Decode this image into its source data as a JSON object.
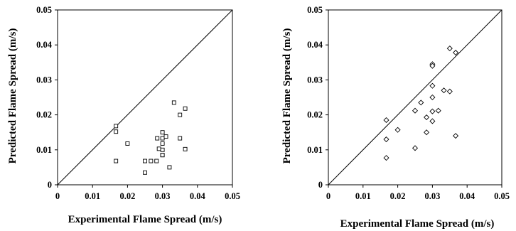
{
  "chart_data": [
    {
      "type": "scatter",
      "title": "",
      "xlabel": "Experimental Flame Spread (m/s)",
      "ylabel": "Predicted Flame Spread (m/s)",
      "xlim": [
        0,
        0.05
      ],
      "ylim": [
        0,
        0.05
      ],
      "xticks": [
        "0",
        "0.01",
        "0.02",
        "0.03",
        "0.04",
        "0.05"
      ],
      "yticks": [
        "0",
        "0.01",
        "0.02",
        "0.03",
        "0.04",
        "0.05"
      ],
      "marker": "square",
      "reference_line": "y = x",
      "grid": false,
      "series": [
        {
          "points": [
            [
              0.0167,
              0.0168
            ],
            [
              0.0167,
              0.0152
            ],
            [
              0.0167,
              0.0068
            ],
            [
              0.02,
              0.0118
            ],
            [
              0.025,
              0.0068
            ],
            [
              0.025,
              0.0035
            ],
            [
              0.0267,
              0.0068
            ],
            [
              0.0283,
              0.0068
            ],
            [
              0.0285,
              0.0133
            ],
            [
              0.029,
              0.0103
            ],
            [
              0.03,
              0.015
            ],
            [
              0.03,
              0.0133
            ],
            [
              0.03,
              0.0118
            ],
            [
              0.03,
              0.01
            ],
            [
              0.03,
              0.0085
            ],
            [
              0.03,
              0.0085
            ],
            [
              0.031,
              0.0138
            ],
            [
              0.032,
              0.005
            ],
            [
              0.0333,
              0.0235
            ],
            [
              0.035,
              0.02
            ],
            [
              0.035,
              0.0133
            ],
            [
              0.0365,
              0.0218
            ],
            [
              0.0365,
              0.0102
            ]
          ]
        }
      ]
    },
    {
      "type": "scatter",
      "title": "",
      "xlabel": "Experimental Flame Spread (m/s)",
      "ylabel": "Predicted Flame Spread (m/s)",
      "xlim": [
        0,
        0.05
      ],
      "ylim": [
        0,
        0.05
      ],
      "xticks": [
        "0",
        "0.01",
        "0.02",
        "0.03",
        "0.04",
        "0.05"
      ],
      "yticks": [
        "0",
        "0.01",
        "0.02",
        "0.03",
        "0.04",
        "0.05"
      ],
      "marker": "diamond",
      "reference_line": "y = x",
      "grid": false,
      "series": [
        {
          "points": [
            [
              0.0167,
              0.0185
            ],
            [
              0.0167,
              0.013
            ],
            [
              0.0167,
              0.0077
            ],
            [
              0.02,
              0.0157
            ],
            [
              0.025,
              0.0212
            ],
            [
              0.025,
              0.0105
            ],
            [
              0.0267,
              0.0235
            ],
            [
              0.0283,
              0.0193
            ],
            [
              0.0283,
              0.015
            ],
            [
              0.03,
              0.0345
            ],
            [
              0.03,
              0.034
            ],
            [
              0.03,
              0.0283
            ],
            [
              0.03,
              0.025
            ],
            [
              0.03,
              0.021
            ],
            [
              0.03,
              0.0182
            ],
            [
              0.0317,
              0.0212
            ],
            [
              0.0333,
              0.027
            ],
            [
              0.035,
              0.039
            ],
            [
              0.035,
              0.0267
            ],
            [
              0.0367,
              0.0378
            ],
            [
              0.0367,
              0.014
            ]
          ]
        }
      ]
    }
  ]
}
